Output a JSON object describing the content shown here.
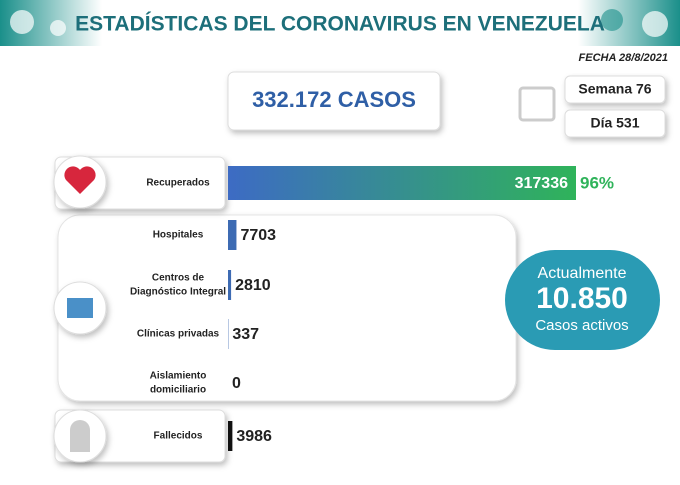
{
  "header": {
    "title": "ESTADÍSTICAS DEL CORONAVIRUS EN VENEZUELA",
    "date": "FECHA 28/8/2021"
  },
  "summary": {
    "cases": "332.172 CASOS",
    "week": "Semana 76",
    "day": "Día 531",
    "active_title": "Actualmente",
    "active_value": "10.850",
    "active_caption": "Casos activos"
  },
  "rows": [
    {
      "name": [
        "Recuperados"
      ],
      "value": 317336,
      "percent": "96%",
      "color": "#2fb35a"
    },
    {
      "name": [
        "Hospitales"
      ],
      "value": 7703,
      "color": "#3d6bb3"
    },
    {
      "name": [
        "Centros de",
        "Diagnóstico Integral"
      ],
      "value": 2810,
      "color": "#3d6bb3"
    },
    {
      "name": [
        "Clínicas privadas"
      ],
      "value": 337,
      "color": "#3d6bb3"
    },
    {
      "name": [
        "Aislamiento",
        "domiciliario"
      ],
      "value": 0,
      "color": "#3d6bb3"
    },
    {
      "name": [
        "Fallecidos"
      ],
      "value": 3986,
      "color": "#111111"
    }
  ]
}
